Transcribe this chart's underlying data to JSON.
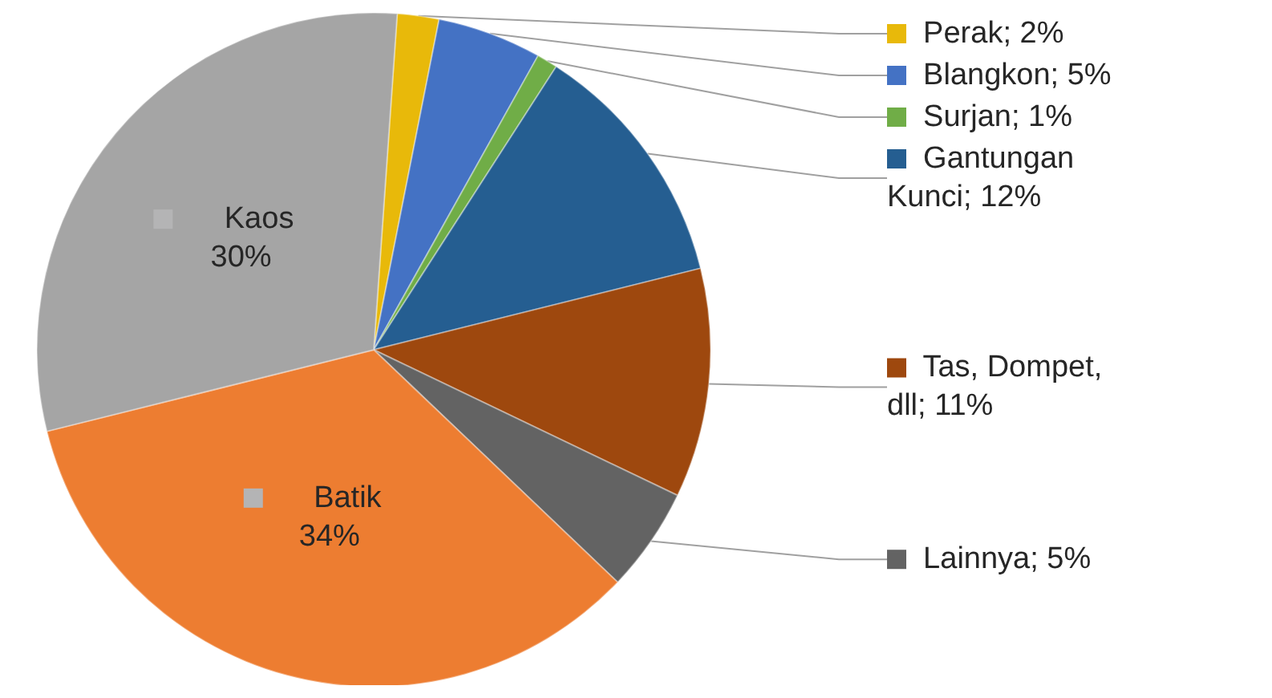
{
  "chart_data": {
    "type": "pie",
    "categories": [
      "Perak",
      "Blangkon",
      "Surjan",
      "Gantungan Kunci",
      "Tas, Dompet, dll",
      "Lainnya",
      "Batik",
      "Kaos"
    ],
    "values": [
      2,
      5,
      1,
      12,
      11,
      5,
      34,
      30
    ],
    "colors": [
      "#e8b90a",
      "#4472c4",
      "#70ad47",
      "#255e91",
      "#9e480e",
      "#636363",
      "#ed7d31",
      "#a5a5a5"
    ],
    "value_labels": [
      "2%",
      "5%",
      "1%",
      "12%",
      "11%",
      "5%",
      "34%",
      "30%"
    ],
    "legend": "right"
  }
}
